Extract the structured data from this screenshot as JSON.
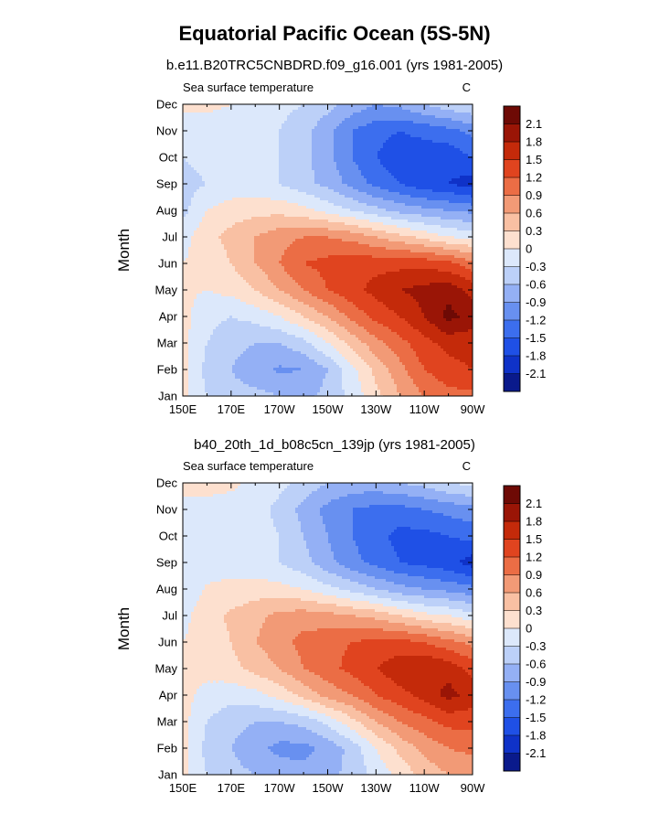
{
  "figure": {
    "title": "Equatorial Pacific Ocean (5S-5N)",
    "levels": [
      -2.1,
      -1.8,
      -1.5,
      -1.2,
      -0.9,
      -0.6,
      -0.3,
      0,
      0.3,
      0.6,
      0.9,
      1.2,
      1.5,
      1.8,
      2.1
    ],
    "level_labels": [
      "-2.1",
      "-1.8",
      "-1.5",
      "-1.2",
      "-0.9",
      "-0.6",
      "-0.3",
      "0",
      "0.3",
      "0.6",
      "0.9",
      "1.2",
      "1.5",
      "1.8",
      "2.1"
    ],
    "palette": [
      "#0a1a8c",
      "#0f32c8",
      "#1f50e6",
      "#3c6eee",
      "#6890f0",
      "#94b0f5",
      "#bcd0f8",
      "#dce8fb",
      "#fde0cf",
      "#f9c0a3",
      "#f29a76",
      "#eb6d45",
      "#e0441f",
      "#c42a0a",
      "#9a1506",
      "#6e0a05"
    ]
  },
  "chart_data": [
    {
      "type": "heatmap",
      "title": "b.e11.B20TRC5CNBDRD.f09_g16.001 (yrs 1981-2005)",
      "left_label": "Sea surface temperature",
      "units": "C",
      "xlabel": "",
      "ylabel": "Month",
      "x_ticks": [
        "150E",
        "170E",
        "170W",
        "150W",
        "130W",
        "110W",
        "90W"
      ],
      "y_ticks": [
        "Jan",
        "Feb",
        "Mar",
        "Apr",
        "May",
        "Jun",
        "Jul",
        "Aug",
        "Sep",
        "Oct",
        "Nov",
        "Dec"
      ],
      "xlim": [
        150,
        270
      ],
      "ylim": [
        "Jan",
        "Dec"
      ],
      "x_values": [
        150,
        160,
        170,
        180,
        190,
        200,
        210,
        220,
        230,
        240,
        250,
        260,
        270
      ],
      "y_values": [
        "Jan",
        "Feb",
        "Mar",
        "Apr",
        "May",
        "Jun",
        "Jul",
        "Aug",
        "Sep",
        "Oct",
        "Nov",
        "Dec"
      ],
      "z": [
        [
          0.1,
          -0.3,
          -0.5,
          -0.5,
          -0.6,
          -0.7,
          -0.5,
          -0.2,
          0.2,
          0.6,
          0.9,
          1.1,
          1.1
        ],
        [
          0.1,
          -0.4,
          -0.6,
          -0.8,
          -0.95,
          -0.9,
          -0.6,
          -0.1,
          0.4,
          0.8,
          1.2,
          1.4,
          1.5
        ],
        [
          0.1,
          -0.3,
          -0.5,
          -0.6,
          -0.6,
          -0.4,
          0.0,
          0.4,
          0.8,
          1.1,
          1.4,
          1.6,
          1.6
        ],
        [
          0.1,
          -0.2,
          -0.3,
          -0.2,
          0.0,
          0.3,
          0.6,
          1.0,
          1.3,
          1.5,
          1.8,
          2.2,
          2.0
        ],
        [
          0.05,
          0.0,
          0.1,
          0.3,
          0.6,
          0.9,
          1.2,
          1.4,
          1.6,
          1.8,
          1.9,
          2.0,
          1.7
        ],
        [
          0.0,
          0.1,
          0.3,
          0.6,
          0.9,
          1.2,
          1.3,
          1.4,
          1.4,
          1.4,
          1.4,
          1.3,
          1.0
        ],
        [
          -0.1,
          0.2,
          0.4,
          0.6,
          0.8,
          0.9,
          0.9,
          0.8,
          0.6,
          0.4,
          0.2,
          0.0,
          -0.1
        ],
        [
          -0.4,
          0.0,
          0.15,
          0.2,
          0.2,
          0.1,
          -0.1,
          -0.3,
          -0.5,
          -0.7,
          -0.8,
          -0.9,
          -1.0
        ],
        [
          -0.4,
          -0.3,
          -0.2,
          -0.2,
          -0.3,
          -0.5,
          -0.7,
          -1.0,
          -1.3,
          -1.5,
          -1.7,
          -1.8,
          -1.95
        ],
        [
          -0.3,
          -0.2,
          -0.1,
          -0.1,
          -0.3,
          -0.5,
          -0.8,
          -1.2,
          -1.5,
          -1.7,
          -1.7,
          -1.7,
          -1.5
        ],
        [
          -0.2,
          -0.1,
          -0.1,
          -0.1,
          -0.3,
          -0.5,
          -0.8,
          -1.2,
          -1.4,
          -1.5,
          -1.4,
          -1.3,
          -1.1
        ],
        [
          0.1,
          0.05,
          0.0,
          -0.1,
          -0.2,
          -0.3,
          -0.5,
          -0.7,
          -0.9,
          -0.8,
          -0.6,
          -0.4,
          -0.3
        ]
      ]
    },
    {
      "type": "heatmap",
      "title": "b40_20th_1d_b08c5cn_139jp (yrs 1981-2005)",
      "left_label": "Sea surface temperature",
      "units": "C",
      "xlabel": "",
      "ylabel": "Month",
      "x_ticks": [
        "150E",
        "170E",
        "170W",
        "150W",
        "130W",
        "110W",
        "90W"
      ],
      "y_ticks": [
        "Jan",
        "Feb",
        "Mar",
        "Apr",
        "May",
        "Jun",
        "Jul",
        "Aug",
        "Sep",
        "Oct",
        "Nov",
        "Dec"
      ],
      "xlim": [
        150,
        270
      ],
      "ylim": [
        "Jan",
        "Dec"
      ],
      "x_values": [
        150,
        160,
        170,
        180,
        190,
        200,
        210,
        220,
        230,
        240,
        250,
        260,
        270
      ],
      "y_values": [
        "Jan",
        "Feb",
        "Mar",
        "Apr",
        "May",
        "Jun",
        "Jul",
        "Aug",
        "Sep",
        "Oct",
        "Nov",
        "Dec"
      ],
      "z": [
        [
          0.1,
          -0.3,
          -0.5,
          -0.6,
          -0.7,
          -0.8,
          -0.7,
          -0.5,
          -0.2,
          0.1,
          0.4,
          0.6,
          0.6
        ],
        [
          0.1,
          -0.4,
          -0.6,
          -0.8,
          -1.0,
          -1.0,
          -0.8,
          -0.5,
          0.0,
          0.4,
          0.7,
          0.9,
          1.0
        ],
        [
          0.1,
          -0.3,
          -0.5,
          -0.6,
          -0.6,
          -0.5,
          -0.2,
          0.2,
          0.6,
          0.9,
          1.1,
          1.3,
          1.3
        ],
        [
          0.1,
          -0.1,
          -0.2,
          -0.1,
          0.1,
          0.4,
          0.7,
          0.9,
          1.2,
          1.4,
          1.6,
          1.9,
          1.7
        ],
        [
          0.05,
          0.1,
          0.2,
          0.4,
          0.6,
          0.9,
          1.1,
          1.3,
          1.5,
          1.7,
          1.8,
          1.7,
          1.4
        ],
        [
          0.0,
          0.15,
          0.3,
          0.6,
          0.8,
          1.0,
          1.1,
          1.2,
          1.3,
          1.3,
          1.2,
          1.0,
          0.8
        ],
        [
          -0.1,
          0.2,
          0.35,
          0.5,
          0.7,
          0.75,
          0.7,
          0.6,
          0.5,
          0.3,
          0.1,
          0.0,
          -0.2
        ],
        [
          -0.3,
          0.05,
          0.1,
          0.15,
          0.1,
          0.0,
          -0.2,
          -0.4,
          -0.6,
          -0.8,
          -0.9,
          -1.0,
          -1.1
        ],
        [
          -0.3,
          -0.2,
          -0.15,
          -0.2,
          -0.3,
          -0.5,
          -0.8,
          -1.1,
          -1.3,
          -1.5,
          -1.6,
          -1.7,
          -1.95
        ],
        [
          -0.2,
          -0.15,
          -0.1,
          -0.15,
          -0.3,
          -0.6,
          -0.9,
          -1.2,
          -1.4,
          -1.6,
          -1.6,
          -1.5,
          -1.4
        ],
        [
          -0.1,
          -0.1,
          -0.1,
          -0.15,
          -0.4,
          -0.7,
          -1.0,
          -1.2,
          -1.3,
          -1.3,
          -1.2,
          -1.1,
          -1.0
        ],
        [
          0.1,
          0.1,
          0.05,
          -0.05,
          -0.2,
          -0.4,
          -0.6,
          -0.7,
          -0.7,
          -0.6,
          -0.5,
          -0.3,
          -0.2
        ]
      ]
    }
  ]
}
